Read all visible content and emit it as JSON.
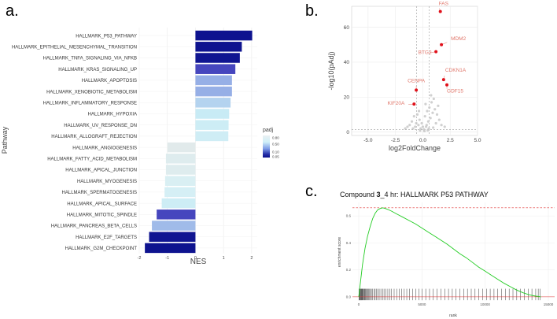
{
  "panels": {
    "a": {
      "letter": "a.",
      "chart_data": {
        "type": "bar",
        "orientation": "horizontal",
        "xlabel": "NES",
        "ylabel": "Pathway",
        "xlim": [
          -2,
          2.2
        ],
        "xticks": [
          -2,
          -1,
          0,
          1,
          2
        ],
        "categories": [
          "HALLMARK_P53_PATHWAY",
          "HALLMARK_EPITHELIAL_MESENCHYMAL_TRANSITION",
          "HALLMARK_TNFA_SIGNALING_VIA_NFKB",
          "HALLMARK_KRAS_SIGNALING_UP",
          "HALLMARK_APOPTOSIS",
          "HALLMARK_XENOBIOTIC_METABOLISM",
          "HALLMARK_INFLAMMATORY_RESPONSE",
          "HALLMARK_HYPOXIA",
          "HALLMARK_UV_RESPONSE_DN",
          "HALLMARK_ALLOGRAFT_REJECTION",
          "HALLMARK_ANGIOGENESIS",
          "HALLMARK_FATTY_ACID_METABOLISM",
          "HALLMARK_APICAL_JUNCTION",
          "HALLMARK_MYOGENESIS",
          "HALLMARK_SPERMATOGENESIS",
          "HALLMARK_APICAL_SURFACE",
          "HALLMARK_MITOTIC_SPINDLE",
          "HALLMARK_PANCREAS_BETA_CELLS",
          "HALLMARK_E2F_TARGETS",
          "HALLMARK_G2M_CHECKPOINT"
        ],
        "values": [
          2.02,
          1.65,
          1.58,
          1.42,
          1.3,
          1.3,
          1.25,
          1.2,
          1.18,
          1.17,
          -1.0,
          -1.05,
          -1.05,
          -1.08,
          -1.1,
          -1.2,
          -1.38,
          -1.55,
          -1.65,
          -1.8
        ],
        "padj": [
          0.02,
          0.02,
          0.03,
          0.12,
          0.3,
          0.3,
          0.45,
          0.55,
          0.6,
          0.62,
          0.82,
          0.78,
          0.78,
          0.72,
          0.68,
          0.6,
          0.12,
          0.35,
          0.03,
          0.02
        ],
        "legend": {
          "title": "padj",
          "ticks": [
            "0.80",
            "0.50",
            "0.10",
            "0.05"
          ],
          "placement": "right"
        }
      }
    },
    "b": {
      "letter": "b.",
      "chart_data": {
        "type": "scatter",
        "xlabel": "log2FoldChange",
        "ylabel": "-log10(pAdj)",
        "xlim": [
          -6.5,
          5
        ],
        "ylim": [
          -2,
          72
        ],
        "xticks": [
          -5.0,
          -2.5,
          0.0,
          2.5,
          5.0
        ],
        "xtick_labels": [
          "-5.0",
          "-2.5",
          "0.0",
          "2.5",
          "5.0"
        ],
        "yticks": [
          0,
          20,
          40,
          60
        ],
        "thresholds": {
          "x": [
            -0.58,
            0.58
          ],
          "y": 1.3
        },
        "highlighted": [
          {
            "label": "FAS",
            "x": 1.6,
            "y": 69
          },
          {
            "label": "MDM2",
            "x": 1.7,
            "y": 50
          },
          {
            "label": "BTG2",
            "x": 1.2,
            "y": 46
          },
          {
            "label": "CDKN1A",
            "x": 1.9,
            "y": 30
          },
          {
            "label": "GDF15",
            "x": 2.2,
            "y": 27
          },
          {
            "label": "CENPA",
            "x": -0.6,
            "y": 24
          },
          {
            "label": "KIF20A",
            "x": -0.8,
            "y": 16
          }
        ],
        "background_points": [
          [
            -0.2,
            2
          ],
          [
            0.1,
            1.5
          ],
          [
            0.3,
            3
          ],
          [
            -0.4,
            4
          ],
          [
            0.5,
            6
          ],
          [
            -0.6,
            5
          ],
          [
            0.7,
            8
          ],
          [
            -0.3,
            7
          ],
          [
            0.2,
            9
          ],
          [
            0.9,
            11
          ],
          [
            -0.8,
            9
          ],
          [
            1.1,
            13
          ],
          [
            0.6,
            14
          ],
          [
            -1.0,
            6
          ],
          [
            1.3,
            10
          ],
          [
            0.4,
            12
          ],
          [
            -0.5,
            10
          ],
          [
            0.8,
            17
          ],
          [
            1.0,
            19
          ],
          [
            -1.2,
            4
          ],
          [
            1.5,
            7
          ],
          [
            0.0,
            3
          ],
          [
            -0.1,
            5
          ],
          [
            0.35,
            4
          ],
          [
            -0.7,
            3
          ],
          [
            0.55,
            2
          ],
          [
            1.2,
            5
          ],
          [
            -1.4,
            3
          ],
          [
            1.7,
            4
          ],
          [
            -0.9,
            2
          ],
          [
            0.15,
            0.5
          ],
          [
            -0.25,
            0.8
          ],
          [
            2.0,
            3
          ],
          [
            -1.6,
            2
          ],
          [
            0.45,
            1
          ],
          [
            0.95,
            2.5
          ],
          [
            1.4,
            15
          ],
          [
            0.75,
            21
          ],
          [
            -0.35,
            12
          ],
          [
            0.25,
            16
          ]
        ]
      }
    },
    "c": {
      "letter": "c.",
      "chart_data": {
        "type": "line",
        "title_parts": [
          "Compound ",
          "3",
          "_4 hr: HALLMARK P53 PATHWAY"
        ],
        "xlabel": "rank",
        "ylabel": "enrichment score",
        "xlim": [
          0,
          15000
        ],
        "ylim": [
          -0.03,
          0.7
        ],
        "xticks": [
          0,
          5000,
          10000,
          15000
        ],
        "yticks": [
          0.0,
          0.2,
          0.4,
          0.6
        ],
        "ytick_labels": [
          "0.0",
          "0.2",
          "0.4",
          "0.6"
        ],
        "max_es": 0.66,
        "x": [
          0,
          150,
          300,
          500,
          700,
          900,
          1100,
          1300,
          1500,
          1700,
          1900,
          2100,
          2300,
          2600,
          3000,
          3500,
          4000,
          4500,
          5000,
          5500,
          6000,
          6500,
          7000,
          7500,
          8000,
          8500,
          9000,
          9500,
          10000,
          10500,
          11000,
          11500,
          12000,
          12500,
          13000,
          13500,
          14000,
          14200,
          14400
        ],
        "y": [
          0.0,
          0.12,
          0.24,
          0.36,
          0.45,
          0.52,
          0.58,
          0.62,
          0.645,
          0.655,
          0.66,
          0.655,
          0.648,
          0.635,
          0.615,
          0.59,
          0.565,
          0.54,
          0.51,
          0.48,
          0.45,
          0.42,
          0.39,
          0.355,
          0.32,
          0.29,
          0.255,
          0.22,
          0.19,
          0.16,
          0.13,
          0.1,
          0.075,
          0.05,
          0.03,
          0.015,
          0.005,
          0.003,
          0.0
        ],
        "hits": [
          30,
          60,
          90,
          120,
          160,
          190,
          230,
          260,
          300,
          350,
          400,
          440,
          490,
          540,
          600,
          660,
          720,
          790,
          860,
          930,
          1000,
          1100,
          1200,
          1300,
          1400,
          1500,
          1620,
          1750,
          1880,
          2000,
          2150,
          2300,
          2450,
          2600,
          2800,
          3000,
          3200,
          3400,
          3600,
          3800,
          4000,
          4250,
          4500,
          4750,
          5000,
          5300,
          5600,
          5900,
          6200,
          6500,
          6800,
          7100,
          7400,
          7700,
          8000,
          8300,
          8600,
          8900,
          9200,
          9500,
          9800,
          10100,
          10400,
          10700,
          11000,
          11300,
          11600,
          11900,
          12200,
          12500,
          12800,
          13100,
          13400,
          13700,
          14000,
          14200,
          14350
        ]
      }
    }
  }
}
